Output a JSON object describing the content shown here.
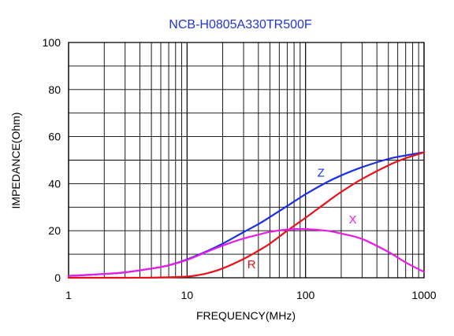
{
  "colors": {
    "title": "#1f35d6",
    "Z": "#1a2ee6",
    "R": "#e8101a",
    "X": "#e81ce8",
    "grid": "#000000"
  },
  "chart_data": {
    "type": "line",
    "title": "NCB-H0805A330TR500F",
    "xlabel": "FREQUENCY(MHz)",
    "ylabel": "IMPEDANCE(Ohm)",
    "x_scale": "log",
    "xlim": [
      1,
      1000
    ],
    "ylim": [
      0,
      100
    ],
    "x_ticks": [
      "1",
      "10",
      "100",
      "1000"
    ],
    "y_ticks": [
      "0",
      "20",
      "40",
      "60",
      "80",
      "100"
    ],
    "grid": true,
    "series": [
      {
        "name": "Z",
        "color": "#1a2ee6",
        "x": [
          1,
          2,
          3,
          5,
          7,
          10,
          15,
          20,
          30,
          40,
          50,
          70,
          100,
          150,
          200,
          300,
          500,
          700,
          1000
        ],
        "y": [
          0.8,
          1.6,
          2.3,
          3.9,
          5.3,
          7.8,
          11.5,
          14.5,
          19.4,
          22.8,
          25.8,
          30.5,
          35.5,
          40.5,
          43.5,
          47.0,
          50.5,
          52.0,
          53.3
        ]
      },
      {
        "name": "R",
        "color": "#e8101a",
        "x": [
          1,
          2,
          3,
          5,
          7,
          10,
          12,
          15,
          20,
          30,
          40,
          50,
          70,
          100,
          150,
          200,
          300,
          500,
          700,
          1000
        ],
        "y": [
          0.0,
          0.0,
          0.0,
          0.05,
          0.2,
          0.5,
          1.0,
          2.0,
          4.0,
          8.0,
          11.5,
          14.5,
          20.0,
          25.5,
          32.0,
          36.5,
          42.0,
          47.8,
          50.8,
          53.3
        ]
      },
      {
        "name": "X",
        "color": "#e81ce8",
        "x": [
          1,
          2,
          3,
          5,
          7,
          10,
          15,
          20,
          30,
          40,
          50,
          70,
          100,
          150,
          200,
          300,
          500,
          700,
          1000
        ],
        "y": [
          0.8,
          1.6,
          2.3,
          3.9,
          5.3,
          7.6,
          11.2,
          13.7,
          16.7,
          18.3,
          19.5,
          20.5,
          20.7,
          20.0,
          18.8,
          16.5,
          11.0,
          6.5,
          2.5
        ]
      }
    ],
    "annotations": [
      {
        "text": "Z",
        "x": 135,
        "y": 43
      },
      {
        "text": "R",
        "x": 35,
        "y": 4
      },
      {
        "text": "X",
        "x": 250,
        "y": 23
      }
    ]
  }
}
